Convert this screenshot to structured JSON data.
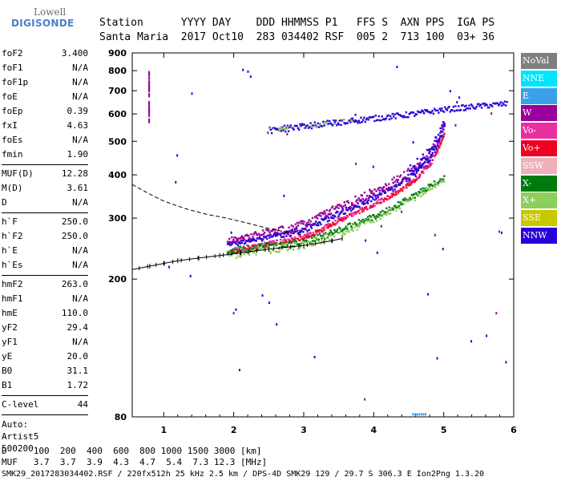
{
  "logo": {
    "line1": "Lowell",
    "line2": "DIGISONDE"
  },
  "header": {
    "line1": "Station      YYYY DAY    DDD HHMMSS P1   FFS S  AXN PPS  IGA PS",
    "line2": "Santa Maria  2017 Oct10  283 034402 RSF  005 2  713 100  03+ 36"
  },
  "params": {
    "g1": [
      [
        "foF2",
        "3.400"
      ],
      [
        "foF1",
        "N/A"
      ],
      [
        "foF1p",
        "N/A"
      ],
      [
        "foE",
        "N/A"
      ],
      [
        "foEp",
        "0.39"
      ],
      [
        "fxI",
        "4.63"
      ],
      [
        "foEs",
        "N/A"
      ],
      [
        "fmin",
        "1.90"
      ]
    ],
    "g2": [
      [
        "MUF(D)",
        "12.28"
      ],
      [
        "M(D)",
        "3.61"
      ],
      [
        "D",
        "N/A"
      ]
    ],
    "g3": [
      [
        "h`F",
        "250.0"
      ],
      [
        "h`F2",
        "250.0"
      ],
      [
        "h`E",
        "N/A"
      ],
      [
        "h`Es",
        "N/A"
      ]
    ],
    "g4": [
      [
        "hmF2",
        "263.0"
      ],
      [
        "hmF1",
        "N/A"
      ],
      [
        "hmE",
        "110.0"
      ],
      [
        "yF2",
        "29.4"
      ],
      [
        "yF1",
        "N/A"
      ],
      [
        "yE",
        "20.0"
      ],
      [
        "B0",
        "31.1"
      ],
      [
        "B1",
        "1.72"
      ]
    ],
    "g5": [
      [
        "C-level",
        "44"
      ]
    ],
    "auto": [
      "Auto:",
      "Artist5",
      "500200"
    ]
  },
  "legend": [
    {
      "label": "NoVal",
      "color": "#7f7f7f"
    },
    {
      "label": "NNE",
      "color": "#00e5ff"
    },
    {
      "label": "E",
      "color": "#3aa0ea"
    },
    {
      "label": "W",
      "color": "#9a009a"
    },
    {
      "label": "Vo-",
      "color": "#ea2fa0"
    },
    {
      "label": "Vo+",
      "color": "#ee0020"
    },
    {
      "label": "SSW",
      "color": "#f0b0b8"
    },
    {
      "label": "X-",
      "color": "#007a10"
    },
    {
      "label": "X+",
      "color": "#8ccf5a"
    },
    {
      "label": "SSE",
      "color": "#c8c800"
    },
    {
      "label": "NNW",
      "color": "#2a00d8"
    }
  ],
  "chart_data": {
    "type": "scatter",
    "xlim": [
      0.55,
      6.0
    ],
    "ylim": [
      80,
      900
    ],
    "y_scale": "log",
    "x_ticks": [
      1,
      2,
      3,
      4,
      5,
      6
    ],
    "y_ticks": [
      80,
      200,
      300,
      400,
      500,
      600,
      700,
      800,
      900
    ],
    "F2_trace": [
      [
        1.9,
        250
      ],
      [
        2.2,
        255
      ],
      [
        2.5,
        262
      ],
      [
        2.8,
        268
      ],
      [
        3.0,
        275
      ],
      [
        3.2,
        285
      ],
      [
        3.4,
        300
      ],
      [
        3.6,
        312
      ],
      [
        3.8,
        325
      ],
      [
        4.0,
        340
      ],
      [
        4.2,
        355
      ],
      [
        4.4,
        375
      ],
      [
        4.6,
        400
      ],
      [
        4.8,
        440
      ],
      [
        4.9,
        480
      ],
      [
        5.0,
        540
      ]
    ],
    "F2_weak": [
      [
        1.9,
        248
      ],
      [
        2.4,
        255
      ],
      [
        2.9,
        262
      ],
      [
        3.3,
        275
      ],
      [
        3.6,
        290
      ],
      [
        3.9,
        305
      ],
      [
        4.2,
        325
      ],
      [
        4.5,
        350
      ],
      [
        4.8,
        380
      ],
      [
        5.0,
        400
      ]
    ],
    "multihop": [
      [
        2.5,
        540
      ],
      [
        3.0,
        555
      ],
      [
        3.5,
        570
      ],
      [
        4.0,
        585
      ],
      [
        4.5,
        600
      ],
      [
        5.0,
        620
      ],
      [
        5.5,
        635
      ],
      [
        5.9,
        645
      ]
    ],
    "profile_curve": [
      [
        0.55,
        213
      ],
      [
        0.8,
        218
      ],
      [
        1.0,
        222
      ],
      [
        1.2,
        226
      ],
      [
        1.5,
        230
      ],
      [
        1.8,
        234
      ],
      [
        2.1,
        238
      ],
      [
        2.5,
        244
      ],
      [
        3.0,
        250
      ],
      [
        3.4,
        258
      ],
      [
        3.55,
        262
      ]
    ],
    "model_curve": [
      [
        0.55,
        375
      ],
      [
        0.8,
        352
      ],
      [
        1.0,
        336
      ],
      [
        1.3,
        320
      ],
      [
        1.6,
        308
      ],
      [
        1.9,
        300
      ],
      [
        2.2,
        290
      ],
      [
        2.5,
        280
      ],
      [
        2.8,
        272
      ],
      [
        3.0,
        268
      ]
    ]
  },
  "bottom": {
    "d_row": "D     100  200  400  600  800 1000 1500 3000 [km]",
    "muf_row": "MUF   3.7  3.7  3.9  4.3  4.7  5.4  7.3 12.3 [MHz]"
  },
  "footer": "SMK29_2017283034402.RSF / 220fx512h 25 kHz 2.5 km / DPS-4D SMK29 129 / 29.7 S 306.3 E Ion2Png 1.3.20"
}
